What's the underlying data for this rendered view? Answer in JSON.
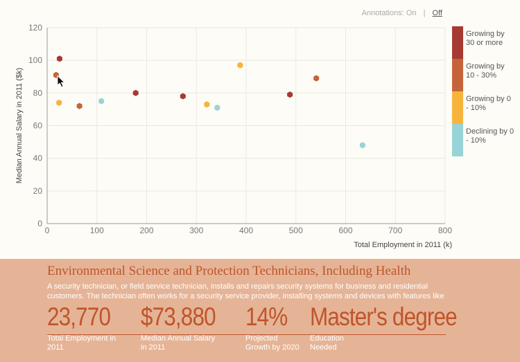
{
  "annotations": {
    "label": "Annotations:",
    "on": "On",
    "separator": "|",
    "off": "Off"
  },
  "legend": [
    {
      "label": "Growing by 30 or more",
      "color": "#a63a33"
    },
    {
      "label": "Growing by 10 - 30%",
      "color": "#c5643a"
    },
    {
      "label": "Growing by 0 - 10%",
      "color": "#f7b43c"
    },
    {
      "label": "Declining by 0 - 10%",
      "color": "#98d4d7"
    }
  ],
  "chart_data": {
    "type": "scatter",
    "xlabel": "Total Employment in 2011 (k)",
    "ylabel": "Median Annual Salary in 2011 ($k)",
    "xlim": [
      0,
      800
    ],
    "ylim": [
      0,
      120
    ],
    "xticks": [
      0,
      100,
      200,
      300,
      400,
      500,
      600,
      700,
      800
    ],
    "yticks": [
      0,
      20,
      40,
      60,
      80,
      100,
      120
    ],
    "grid": true,
    "legend_position": "right",
    "series": [
      {
        "name": "Growing by 30 or more",
        "color": "#a63a33",
        "points": [
          {
            "x": 25,
            "y": 101
          },
          {
            "x": 178,
            "y": 80
          },
          {
            "x": 273,
            "y": 78
          },
          {
            "x": 488,
            "y": 79
          }
        ]
      },
      {
        "name": "Growing by 10 - 30%",
        "color": "#c5643a",
        "points": [
          {
            "x": 18,
            "y": 91
          },
          {
            "x": 65,
            "y": 72
          },
          {
            "x": 541,
            "y": 89
          }
        ]
      },
      {
        "name": "Growing by 0 - 10%",
        "color": "#f7b43c",
        "points": [
          {
            "x": 24,
            "y": 74
          },
          {
            "x": 321,
            "y": 73
          },
          {
            "x": 388,
            "y": 97
          }
        ]
      },
      {
        "name": "Declining by 0 - 10%",
        "color": "#98d4d7",
        "points": [
          {
            "x": 109,
            "y": 75
          },
          {
            "x": 342,
            "y": 71
          },
          {
            "x": 634,
            "y": 48
          }
        ]
      }
    ]
  },
  "detail": {
    "title": "Environmental Science and Protection Technicians, Including Health",
    "description": "A security technician, or field service technician, installs and repairs security systems for business and residential customers. The technician often works for a security service provider, installing systems and devices with features like",
    "stats": [
      {
        "value": "23,770",
        "label": "Total Employment in 2011"
      },
      {
        "value": "$73,880",
        "label": "Median Annual Salary in 2011"
      },
      {
        "value": "14%",
        "label": "Projected Growth by 2020"
      },
      {
        "value": "Master's degree",
        "label": "Education Needed"
      }
    ]
  }
}
